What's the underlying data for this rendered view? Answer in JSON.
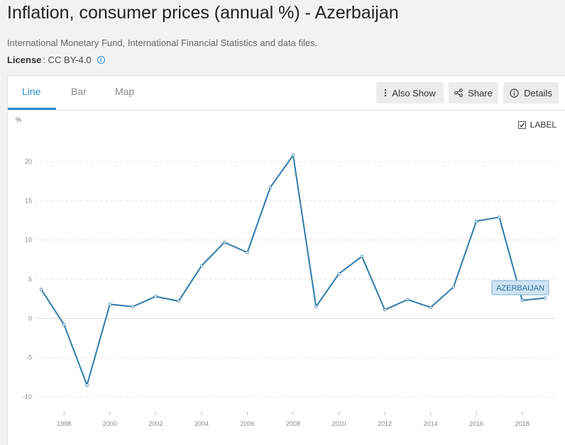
{
  "header": {
    "title": "Inflation, consumer prices (annual %) - Azerbaijan",
    "source": "International Monetary Fund, International Financial Statistics and data files.",
    "license_label": "License",
    "license_value": ": CC BY-4.0"
  },
  "tabs": [
    {
      "label": "Line",
      "active": true
    },
    {
      "label": "Bar",
      "active": false
    },
    {
      "label": "Map",
      "active": false
    }
  ],
  "actions": {
    "also_show": "Also Show",
    "share": "Share",
    "details": "Details"
  },
  "label_toggle": {
    "label": "LABEL",
    "checked": true
  },
  "colors": {
    "accent": "#2a8ccf",
    "series": "#2e7bab",
    "series_label_bg": "#cfe4f3"
  },
  "icons": {
    "also_show": "vertical-dots-icon",
    "share": "share-icon",
    "details": "info-icon",
    "license": "info-icon"
  },
  "chart_data": {
    "type": "line",
    "title": "",
    "xlabel": "",
    "ylabel": "%",
    "x": [
      1997,
      1998,
      1999,
      2000,
      2001,
      2002,
      2003,
      2004,
      2005,
      2006,
      2007,
      2008,
      2009,
      2010,
      2011,
      2012,
      2013,
      2014,
      2015,
      2016,
      2017,
      2018,
      2019
    ],
    "series": [
      {
        "name": "AZERBAIJAN",
        "values": [
          3.7,
          -0.8,
          -8.5,
          1.8,
          1.5,
          2.8,
          2.2,
          6.7,
          9.7,
          8.4,
          16.7,
          20.8,
          1.5,
          5.7,
          7.9,
          1.1,
          2.4,
          1.4,
          4.0,
          12.4,
          12.9,
          2.3,
          2.6
        ]
      }
    ],
    "ylim": [
      -10,
      20
    ],
    "yticks": [
      -10,
      -5,
      0,
      5,
      10,
      15,
      20
    ],
    "xticks": [
      1998,
      2000,
      2002,
      2004,
      2006,
      2008,
      2010,
      2012,
      2014,
      2016,
      2018
    ],
    "grid": true,
    "legend": "inline label near end of series"
  }
}
